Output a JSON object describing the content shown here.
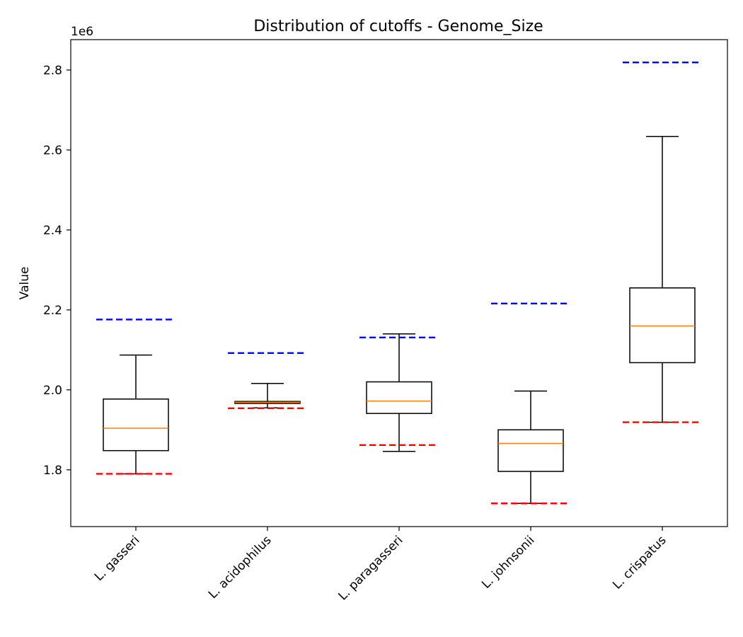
{
  "chart_data": {
    "type": "box",
    "title": "Distribution of cutoffs - Genome_Size",
    "xlabel": "",
    "ylabel": "Value",
    "y_scale_label": "1e6",
    "ylim": [
      1.658,
      2.876
    ],
    "yticks": [
      1.8,
      2.0,
      2.2,
      2.4,
      2.6,
      2.8
    ],
    "ytick_labels": [
      "1.8",
      "2.0",
      "2.2",
      "2.4",
      "2.6",
      "2.8"
    ],
    "categories": [
      "L. gasseri",
      "L. acidophilus",
      "L. paragasseri",
      "L. johnsonii",
      "L. crispatus"
    ],
    "boxes": [
      {
        "category": "L. gasseri",
        "whisker_low": 1.79,
        "q1": 1.848,
        "median": 1.904,
        "q3": 1.977,
        "whisker_high": 2.087,
        "lower_cutoff": 1.79,
        "upper_cutoff": 2.176
      },
      {
        "category": "L. acidophilus",
        "whisker_low": 1.955,
        "q1": 1.966,
        "median": 1.969,
        "q3": 1.971,
        "whisker_high": 2.016,
        "lower_cutoff": 1.954,
        "upper_cutoff": 2.092
      },
      {
        "category": "L. paragasseri",
        "whisker_low": 1.846,
        "q1": 1.941,
        "median": 1.972,
        "q3": 2.02,
        "whisker_high": 2.14,
        "lower_cutoff": 1.862,
        "upper_cutoff": 2.131
      },
      {
        "category": "L. johnsonii",
        "whisker_low": 1.716,
        "q1": 1.796,
        "median": 1.866,
        "q3": 1.9,
        "whisker_high": 1.997,
        "lower_cutoff": 1.716,
        "upper_cutoff": 2.216
      },
      {
        "category": "L. crispatus",
        "whisker_low": 1.919,
        "q1": 2.068,
        "median": 2.16,
        "q3": 2.255,
        "whisker_high": 2.634,
        "lower_cutoff": 1.919,
        "upper_cutoff": 2.819
      }
    ],
    "colors": {
      "box": "#000000",
      "median": "#ff7f0e",
      "lower_cutoff": "#ff0000",
      "upper_cutoff": "#0000ff"
    },
    "grid": false,
    "legend": "none"
  }
}
